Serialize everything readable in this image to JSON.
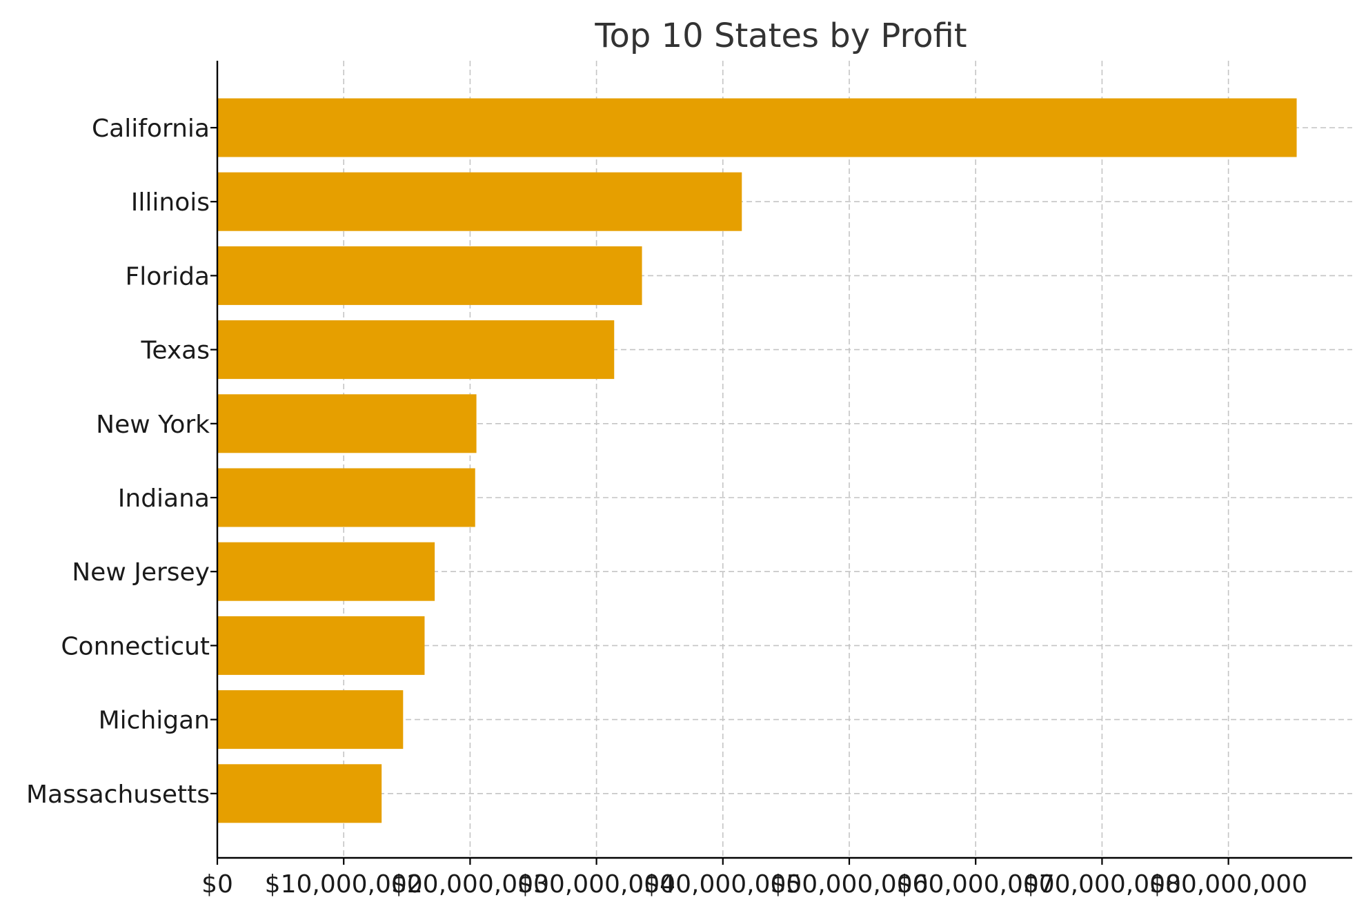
{
  "chart_data": {
    "type": "bar",
    "orientation": "horizontal",
    "title": "Top 10 States by Profit",
    "xlabel": "",
    "ylabel": "",
    "categories": [
      "California",
      "Illinois",
      "Florida",
      "Texas",
      "New York",
      "Indiana",
      "New Jersey",
      "Connecticut",
      "Michigan",
      "Massachusetts"
    ],
    "values": [
      85400000,
      41500000,
      33600000,
      31400000,
      20500000,
      20400000,
      17200000,
      16400000,
      14700000,
      13000000
    ],
    "xlim": [
      0,
      89500000
    ],
    "xticks": [
      0,
      10000000,
      20000000,
      30000000,
      40000000,
      50000000,
      60000000,
      70000000,
      80000000
    ],
    "xtick_labels": [
      "$0",
      "$10,000,000",
      "$20,000,000",
      "$30,000,000",
      "$40,000,000",
      "$50,000,000",
      "$60,000,000",
      "$70,000,000",
      "$80,000,000"
    ],
    "grid": true,
    "bar_color": "#e69f00"
  }
}
